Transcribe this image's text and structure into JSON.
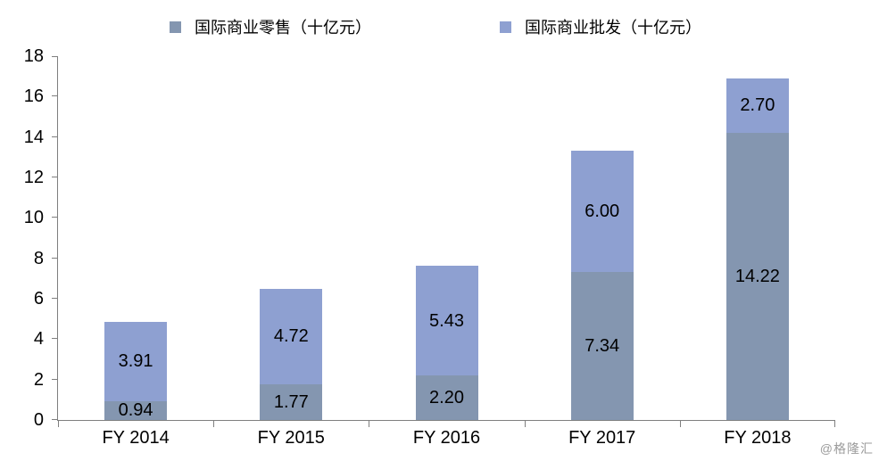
{
  "chart_data": {
    "type": "bar",
    "stacked": true,
    "title": "",
    "xlabel": "",
    "ylabel": "",
    "categories": [
      "FY 2014",
      "FY 2015",
      "FY 2016",
      "FY 2017",
      "FY 2018"
    ],
    "series": [
      {
        "name": "国际商业零售（十亿元）",
        "color": "#8496B0",
        "values": [
          0.94,
          1.77,
          2.2,
          7.34,
          14.22
        ]
      },
      {
        "name": "国际商业批发（十亿元）",
        "color": "#8EA0D1",
        "values": [
          3.91,
          4.72,
          5.43,
          6.0,
          2.7
        ]
      }
    ],
    "data_labels": [
      [
        "0.94",
        "1.77",
        "2.20",
        "7.34",
        "14.22"
      ],
      [
        "3.91",
        "4.72",
        "5.43",
        "6.00",
        "2.70"
      ]
    ],
    "ylim": [
      0,
      18
    ],
    "ytick_step": 2,
    "grid": false,
    "legend_position": "top",
    "axis_color": "#7f7f7f",
    "text_color": "#000000"
  },
  "watermark": {
    "text": "@格隆汇",
    "color": "#9b9b9b"
  }
}
